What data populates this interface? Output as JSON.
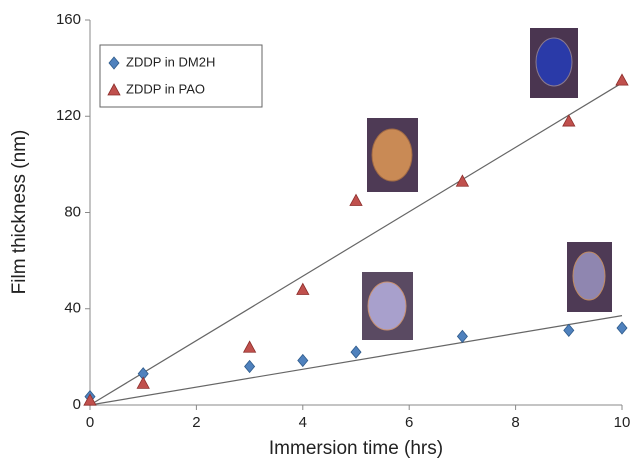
{
  "chart_data": {
    "type": "scatter",
    "x_label": "Immersion time (hrs)",
    "y_label": "Film thickness (nm)",
    "xlim": [
      0,
      10
    ],
    "xticks": [
      0,
      2,
      4,
      6,
      8,
      10
    ],
    "ylim": [
      0,
      160
    ],
    "yticks": [
      0,
      40,
      80,
      120,
      160
    ],
    "trendline": true,
    "legend": "upper-left",
    "series": [
      {
        "name": "ZDDP in DM2H",
        "color": "#4f81bd",
        "marker": "diamond",
        "x": [
          0,
          1,
          3,
          4,
          5,
          7,
          9,
          10
        ],
        "values": [
          3.5,
          13,
          16,
          18.5,
          22,
          28.5,
          31,
          32
        ]
      },
      {
        "name": "ZDDP in PAO",
        "color": "#c0504d",
        "marker": "triangle",
        "x": [
          0,
          1,
          3,
          4,
          5,
          7,
          9,
          10
        ],
        "values": [
          2,
          9,
          24,
          48,
          85,
          93,
          118,
          135
        ]
      }
    ]
  }
}
